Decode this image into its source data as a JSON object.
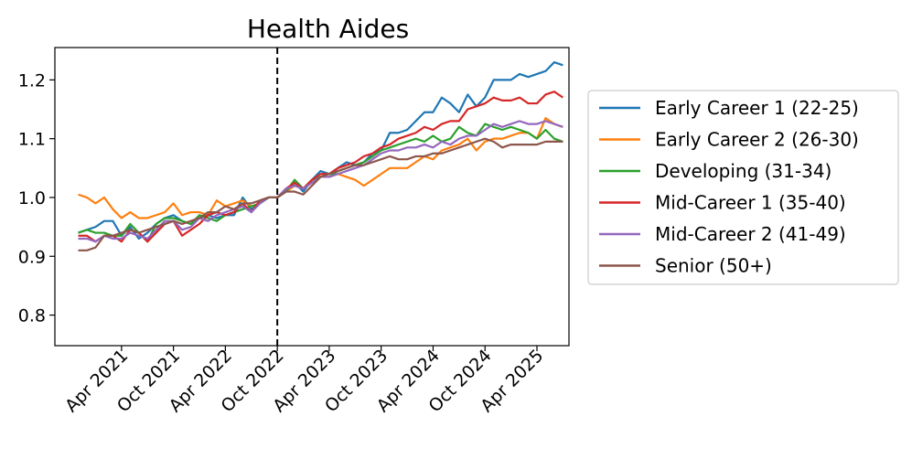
{
  "chart_data": {
    "type": "line",
    "title": "Health Aides",
    "xlabel": "",
    "ylabel": "",
    "x_ticks": [
      "Apr 2021",
      "Oct 2021",
      "Apr 2022",
      "Oct 2022",
      "Apr 2023",
      "Oct 2023",
      "Apr 2024",
      "Oct 2024",
      "Apr 2025"
    ],
    "x_tick_months": [
      5,
      11,
      17,
      23,
      29,
      35,
      41,
      47,
      53
    ],
    "x_start": "Nov 2020",
    "x_end": "Jun 2025",
    "x_range": [
      -2.7,
      56.7
    ],
    "ylim": [
      0.748,
      1.255
    ],
    "y_ticks": [
      0.8,
      0.9,
      1.0,
      1.1,
      1.2
    ],
    "y_tick_labels": [
      "0.8",
      "0.9",
      "1.0",
      "1.1",
      "1.2"
    ],
    "reference_line": {
      "month": 23,
      "label": "Oct 2022",
      "style": "dashed",
      "color": "#000000"
    },
    "grid": false,
    "legend": {
      "placement": "outside-right"
    },
    "series": [
      {
        "name": "Early Career 1 (22-25)",
        "color": "#1f77b4",
        "values": [
          0.94,
          0.945,
          0.95,
          0.96,
          0.96,
          0.935,
          0.95,
          0.93,
          0.94,
          0.955,
          0.965,
          0.97,
          0.96,
          0.955,
          0.965,
          0.97,
          0.965,
          0.97,
          0.97,
          1.0,
          0.98,
          0.99,
          1.0,
          1.0,
          1.01,
          1.025,
          1.01,
          1.03,
          1.045,
          1.04,
          1.05,
          1.06,
          1.055,
          1.06,
          1.075,
          1.08,
          1.11,
          1.11,
          1.115,
          1.13,
          1.145,
          1.145,
          1.17,
          1.16,
          1.145,
          1.175,
          1.155,
          1.17,
          1.2,
          1.2,
          1.2,
          1.21,
          1.205,
          1.21,
          1.215,
          1.23,
          1.225
        ]
      },
      {
        "name": "Early Career 2 (26-30)",
        "color": "#ff7f0e",
        "values": [
          1.005,
          1.0,
          0.99,
          1.0,
          0.98,
          0.965,
          0.975,
          0.965,
          0.965,
          0.97,
          0.975,
          0.99,
          0.97,
          0.975,
          0.975,
          0.97,
          0.995,
          0.985,
          0.99,
          0.995,
          0.985,
          0.99,
          1.0,
          1.0,
          1.01,
          1.02,
          1.015,
          1.03,
          1.035,
          1.035,
          1.04,
          1.035,
          1.03,
          1.02,
          1.03,
          1.04,
          1.05,
          1.05,
          1.05,
          1.06,
          1.07,
          1.065,
          1.08,
          1.085,
          1.09,
          1.1,
          1.08,
          1.095,
          1.1,
          1.1,
          1.105,
          1.11,
          1.11,
          1.1,
          1.135,
          1.125,
          1.12
        ]
      },
      {
        "name": "Developing (31-34)",
        "color": "#2ca02c",
        "values": [
          0.94,
          0.945,
          0.94,
          0.94,
          0.935,
          0.935,
          0.955,
          0.94,
          0.925,
          0.955,
          0.965,
          0.965,
          0.96,
          0.955,
          0.97,
          0.965,
          0.96,
          0.97,
          0.975,
          0.98,
          0.985,
          0.99,
          1.0,
          1.0,
          1.01,
          1.03,
          1.015,
          1.03,
          1.035,
          1.035,
          1.045,
          1.05,
          1.055,
          1.06,
          1.07,
          1.08,
          1.085,
          1.09,
          1.095,
          1.1,
          1.095,
          1.105,
          1.095,
          1.1,
          1.12,
          1.11,
          1.105,
          1.125,
          1.12,
          1.115,
          1.12,
          1.115,
          1.11,
          1.1,
          1.115,
          1.1,
          1.095
        ]
      },
      {
        "name": "Mid-Career 1 (35-40)",
        "color": "#d62728",
        "values": [
          0.935,
          0.935,
          0.925,
          0.935,
          0.935,
          0.925,
          0.945,
          0.94,
          0.925,
          0.94,
          0.955,
          0.96,
          0.935,
          0.945,
          0.955,
          0.97,
          0.975,
          0.97,
          0.975,
          0.99,
          0.975,
          0.995,
          1.0,
          1.0,
          1.015,
          1.025,
          1.015,
          1.03,
          1.04,
          1.04,
          1.05,
          1.055,
          1.06,
          1.07,
          1.075,
          1.085,
          1.09,
          1.1,
          1.105,
          1.11,
          1.12,
          1.115,
          1.125,
          1.13,
          1.13,
          1.15,
          1.155,
          1.16,
          1.17,
          1.165,
          1.165,
          1.17,
          1.16,
          1.16,
          1.175,
          1.18,
          1.17
        ]
      },
      {
        "name": "Mid-Career 2 (41-49)",
        "color": "#9467bd",
        "values": [
          0.93,
          0.93,
          0.925,
          0.935,
          0.93,
          0.93,
          0.94,
          0.935,
          0.93,
          0.945,
          0.96,
          0.96,
          0.945,
          0.95,
          0.965,
          0.96,
          0.97,
          0.975,
          0.98,
          0.985,
          0.975,
          0.99,
          1.0,
          1.0,
          1.015,
          1.02,
          1.015,
          1.025,
          1.035,
          1.035,
          1.04,
          1.045,
          1.05,
          1.055,
          1.065,
          1.075,
          1.08,
          1.08,
          1.085,
          1.085,
          1.09,
          1.085,
          1.095,
          1.09,
          1.1,
          1.105,
          1.105,
          1.115,
          1.125,
          1.12,
          1.125,
          1.13,
          1.125,
          1.125,
          1.13,
          1.125,
          1.12
        ]
      },
      {
        "name": "Senior (50+)",
        "color": "#8c564b",
        "values": [
          0.91,
          0.91,
          0.915,
          0.935,
          0.935,
          0.94,
          0.945,
          0.94,
          0.945,
          0.95,
          0.955,
          0.96,
          0.955,
          0.96,
          0.965,
          0.975,
          0.975,
          0.985,
          0.98,
          0.99,
          0.99,
          0.995,
          1.0,
          1.0,
          1.01,
          1.01,
          1.005,
          1.02,
          1.035,
          1.04,
          1.045,
          1.05,
          1.055,
          1.055,
          1.06,
          1.065,
          1.07,
          1.065,
          1.065,
          1.07,
          1.07,
          1.075,
          1.075,
          1.08,
          1.085,
          1.09,
          1.095,
          1.1,
          1.095,
          1.085,
          1.09,
          1.09,
          1.09,
          1.09,
          1.095,
          1.095,
          1.095
        ]
      }
    ]
  }
}
